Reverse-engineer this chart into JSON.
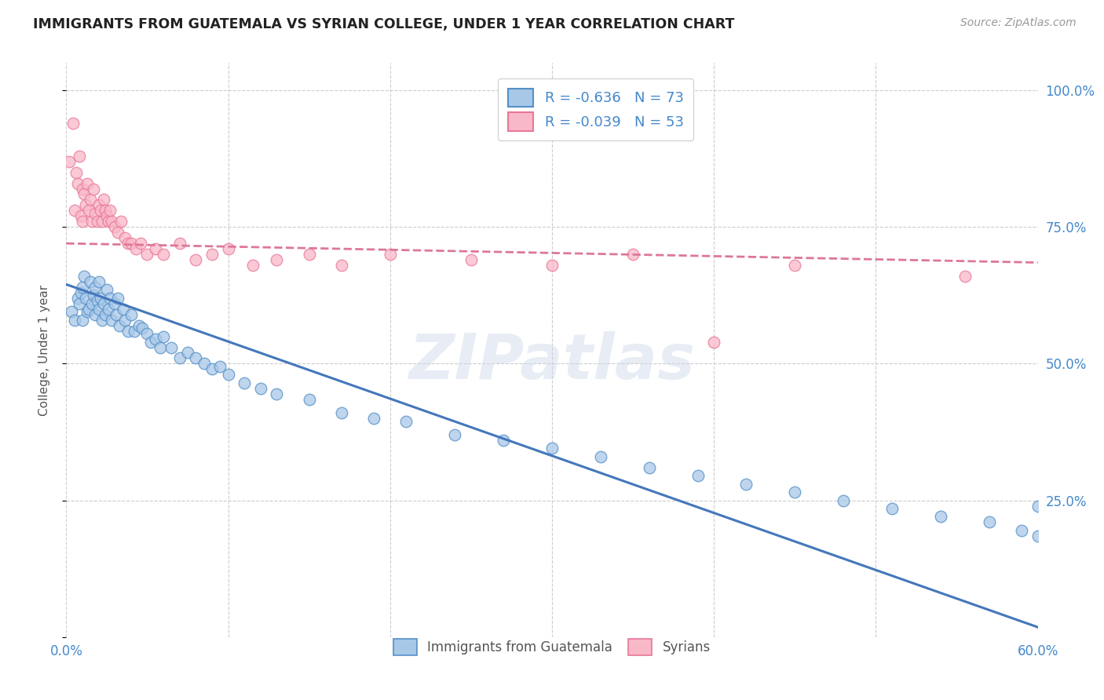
{
  "title": "IMMIGRANTS FROM GUATEMALA VS SYRIAN COLLEGE, UNDER 1 YEAR CORRELATION CHART",
  "source": "Source: ZipAtlas.com",
  "ylabel": "College, Under 1 year",
  "watermark": "ZIPatlas",
  "xlim": [
    0.0,
    0.6
  ],
  "ylim": [
    0.0,
    1.05
  ],
  "xticks": [
    0.0,
    0.1,
    0.2,
    0.3,
    0.4,
    0.5,
    0.6
  ],
  "xticklabels": [
    "0.0%",
    "",
    "",
    "",
    "",
    "",
    "60.0%"
  ],
  "yticks": [
    0.0,
    0.25,
    0.5,
    0.75,
    1.0
  ],
  "yticklabels_right": [
    "",
    "25.0%",
    "50.0%",
    "75.0%",
    "100.0%"
  ],
  "legend_r_blue": "-0.636",
  "legend_n_blue": "73",
  "legend_r_pink": "-0.039",
  "legend_n_pink": "53",
  "blue_fill": "#a8c8e8",
  "pink_fill": "#f9b8c8",
  "blue_edge": "#5590c8",
  "pink_edge": "#e87898",
  "blue_line_color": "#4477bb",
  "pink_line_color": "#dd7799",
  "title_color": "#222222",
  "axis_label_color": "#4488cc",
  "grid_color": "#cccccc",
  "guatemala_x": [
    0.003,
    0.005,
    0.007,
    0.008,
    0.009,
    0.01,
    0.01,
    0.011,
    0.012,
    0.013,
    0.014,
    0.015,
    0.016,
    0.017,
    0.018,
    0.018,
    0.019,
    0.02,
    0.02,
    0.021,
    0.022,
    0.023,
    0.024,
    0.025,
    0.026,
    0.027,
    0.028,
    0.03,
    0.031,
    0.032,
    0.033,
    0.035,
    0.036,
    0.038,
    0.04,
    0.042,
    0.045,
    0.047,
    0.05,
    0.052,
    0.055,
    0.058,
    0.06,
    0.065,
    0.07,
    0.075,
    0.08,
    0.085,
    0.09,
    0.095,
    0.1,
    0.11,
    0.12,
    0.13,
    0.15,
    0.17,
    0.19,
    0.21,
    0.24,
    0.27,
    0.3,
    0.33,
    0.36,
    0.39,
    0.42,
    0.45,
    0.48,
    0.51,
    0.54,
    0.57,
    0.59,
    0.6,
    0.6
  ],
  "guatemala_y": [
    0.595,
    0.58,
    0.62,
    0.61,
    0.63,
    0.64,
    0.58,
    0.66,
    0.62,
    0.595,
    0.6,
    0.65,
    0.61,
    0.625,
    0.59,
    0.64,
    0.615,
    0.6,
    0.65,
    0.62,
    0.58,
    0.61,
    0.59,
    0.635,
    0.6,
    0.62,
    0.58,
    0.61,
    0.59,
    0.62,
    0.57,
    0.6,
    0.58,
    0.56,
    0.59,
    0.56,
    0.57,
    0.565,
    0.555,
    0.54,
    0.545,
    0.53,
    0.55,
    0.53,
    0.51,
    0.52,
    0.51,
    0.5,
    0.49,
    0.495,
    0.48,
    0.465,
    0.455,
    0.445,
    0.435,
    0.41,
    0.4,
    0.395,
    0.37,
    0.36,
    0.345,
    0.33,
    0.31,
    0.295,
    0.28,
    0.265,
    0.25,
    0.235,
    0.22,
    0.21,
    0.195,
    0.185,
    0.24
  ],
  "syrian_x": [
    0.002,
    0.004,
    0.005,
    0.006,
    0.007,
    0.008,
    0.009,
    0.01,
    0.01,
    0.011,
    0.012,
    0.013,
    0.014,
    0.015,
    0.016,
    0.017,
    0.018,
    0.019,
    0.02,
    0.021,
    0.022,
    0.023,
    0.024,
    0.025,
    0.026,
    0.027,
    0.028,
    0.03,
    0.032,
    0.034,
    0.036,
    0.038,
    0.04,
    0.043,
    0.046,
    0.05,
    0.055,
    0.06,
    0.07,
    0.08,
    0.09,
    0.1,
    0.115,
    0.13,
    0.15,
    0.17,
    0.2,
    0.25,
    0.3,
    0.35,
    0.4,
    0.45,
    0.555
  ],
  "syrian_y": [
    0.87,
    0.94,
    0.78,
    0.85,
    0.83,
    0.88,
    0.77,
    0.82,
    0.76,
    0.81,
    0.79,
    0.83,
    0.78,
    0.8,
    0.76,
    0.82,
    0.775,
    0.76,
    0.79,
    0.78,
    0.76,
    0.8,
    0.78,
    0.77,
    0.76,
    0.78,
    0.76,
    0.75,
    0.74,
    0.76,
    0.73,
    0.72,
    0.72,
    0.71,
    0.72,
    0.7,
    0.71,
    0.7,
    0.72,
    0.69,
    0.7,
    0.71,
    0.68,
    0.69,
    0.7,
    0.68,
    0.7,
    0.69,
    0.68,
    0.7,
    0.54,
    0.68,
    0.66
  ],
  "blue_trend_x": [
    0.0,
    0.6
  ],
  "blue_trend_y": [
    0.645,
    0.018
  ],
  "pink_trend_x": [
    0.0,
    0.6
  ],
  "pink_trend_y": [
    0.72,
    0.685
  ]
}
